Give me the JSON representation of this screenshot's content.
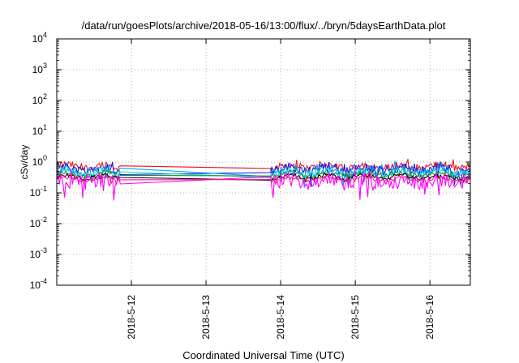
{
  "chart_data": {
    "type": "line",
    "title": "/data/run/goesPlots/archive/2018-05-16/13:00/flux/../bryn/5daysEarthData.plot",
    "xlabel": "Coordinated Universal Time (UTC)",
    "ylabel": "cSv/day",
    "yscale": "log",
    "ylim": [
      0.0001,
      10000
    ],
    "yticks": [
      {
        "value": 0.0001,
        "base": "10",
        "exp": "-4"
      },
      {
        "value": 0.001,
        "base": "10",
        "exp": "-3"
      },
      {
        "value": 0.01,
        "base": "10",
        "exp": "-2"
      },
      {
        "value": 0.1,
        "base": "10",
        "exp": "-1"
      },
      {
        "value": 1,
        "base": "10",
        "exp": "0"
      },
      {
        "value": 10,
        "base": "10",
        "exp": "1"
      },
      {
        "value": 100,
        "base": "10",
        "exp": "2"
      },
      {
        "value": 1000,
        "base": "10",
        "exp": "3"
      },
      {
        "value": 10000,
        "base": "10",
        "exp": "4"
      }
    ],
    "xlim": [
      "2018-05-11T00:00",
      "2018-05-16T13:00"
    ],
    "xticks": [
      {
        "value": "2018-05-12",
        "label": "2018-5-12"
      },
      {
        "value": "2018-05-13",
        "label": "2018-5-13"
      },
      {
        "value": "2018-05-14",
        "label": "2018-5-14"
      },
      {
        "value": "2018-05-15",
        "label": "2018-5-15"
      },
      {
        "value": "2018-05-16",
        "label": "2018-5-16"
      }
    ],
    "grid": true,
    "data_gap": [
      "2018-05-11T20:30",
      "2018-05-13T20:30"
    ],
    "series": [
      {
        "color": "#e8121e",
        "level": 0.72,
        "spread": 0.25
      },
      {
        "color": "#1414e6",
        "level": 0.6,
        "spread": 0.3
      },
      {
        "color": "#00a0ff",
        "level": 0.52,
        "spread": 0.3
      },
      {
        "color": "#16e0c8",
        "level": 0.45,
        "spread": 0.2
      },
      {
        "color": "#1f8a3a",
        "level": 0.4,
        "spread": 0.15
      },
      {
        "color": "#000000",
        "level": 0.33,
        "spread": 0.12
      },
      {
        "color": "#ff00ff",
        "level": 0.24,
        "spread": 0.45
      },
      {
        "color": "#ff1493",
        "level": 0.28,
        "spread": 0.1
      }
    ]
  }
}
